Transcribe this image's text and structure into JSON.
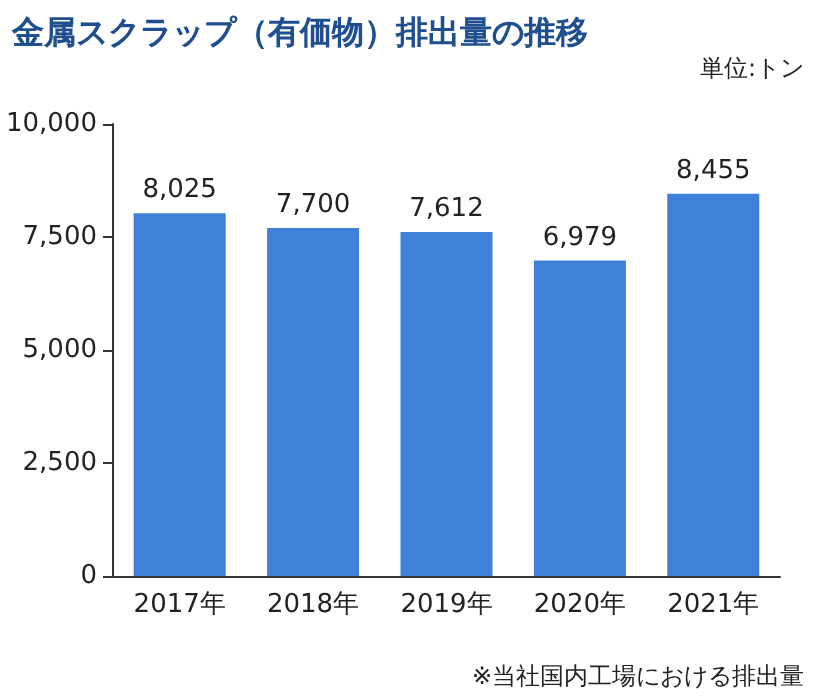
{
  "chart_data": {
    "type": "bar",
    "title": "金属スクラップ（有価物）排出量の推移",
    "ylabel": "単位:トン",
    "annotations": [
      "※当社国内工場における排出量"
    ],
    "categories": [
      "2017年",
      "2018年",
      "2019年",
      "2020年",
      "2021年"
    ],
    "values": [
      8025,
      7700,
      7612,
      6979,
      8455
    ],
    "color": "#3f80d8",
    "value_labels": [
      "8,025",
      "7,700",
      "7,612",
      "6,979",
      "8,455"
    ],
    "ylim": [
      0,
      10000
    ],
    "yticks": [
      0,
      {
        "value": 2500,
        "label": "2,500"
      },
      {
        "value": 5000,
        "label": "5,000"
      },
      {
        "value": 7500,
        "label": "7,500"
      },
      {
        "value": 10000,
        "label": "10,000"
      }
    ],
    "grid": false
  }
}
